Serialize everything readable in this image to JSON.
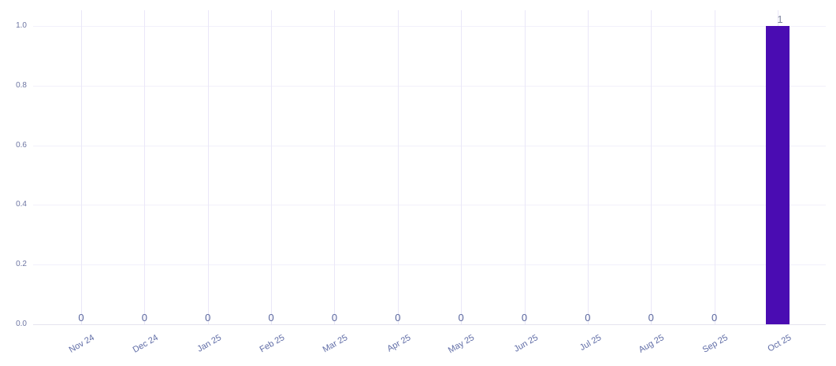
{
  "chart_data": {
    "type": "bar",
    "title": "",
    "xlabel": "",
    "ylabel": "",
    "categories": [
      "Nov 24",
      "Dec 24",
      "Jan 25",
      "Feb 25",
      "Mar 25",
      "Apr 25",
      "May 25",
      "Jun 25",
      "Jul 25",
      "Aug 25",
      "Sep 25",
      "Oct 25"
    ],
    "values": [
      0,
      0,
      0,
      0,
      0,
      0,
      0,
      0,
      0,
      0,
      0,
      1
    ],
    "value_labels": [
      "0",
      "0",
      "0",
      "0",
      "0",
      "0",
      "0",
      "0",
      "0",
      "0",
      "0",
      "1"
    ],
    "ylim": [
      0,
      1.0
    ],
    "yticks": [
      0.0,
      0.2,
      0.4,
      0.6,
      0.8,
      1.0
    ],
    "ytick_labels": [
      "0.0",
      "0.2",
      "0.4",
      "0.6",
      "0.8",
      "1.0"
    ],
    "grid": true,
    "legend": false,
    "colors": {
      "bar": "#4a0cb2",
      "grid_vertical": "#eae7f8",
      "grid_horizontal": "#f2f0fb",
      "axis_baseline": "#e5e4ee",
      "ytick_text": "#6e76a3",
      "xtick_text": "#5f6ca6",
      "value_label_zero": "#5a679e",
      "value_label_bar": "#7d849e"
    }
  }
}
